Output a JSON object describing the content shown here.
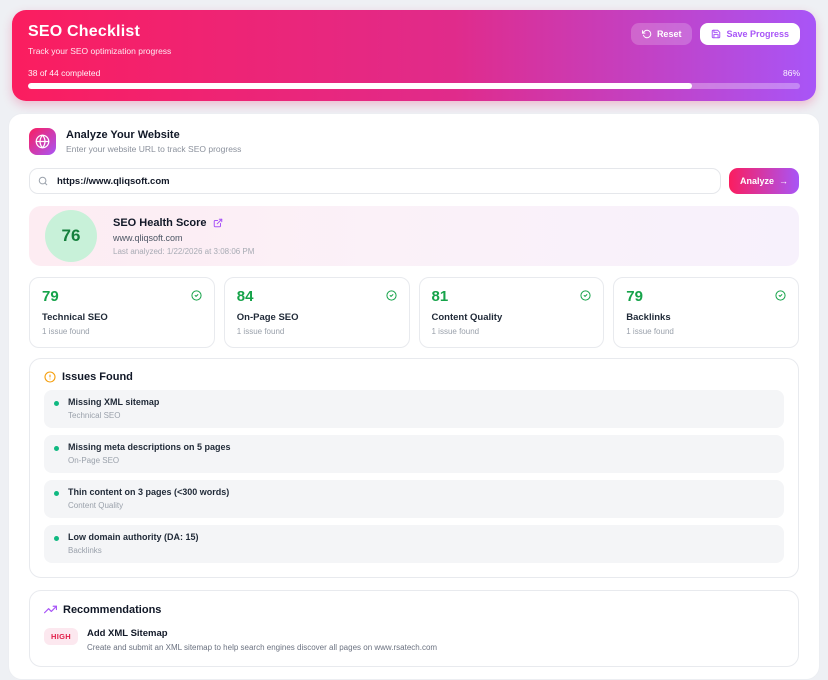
{
  "header": {
    "title": "SEO Checklist",
    "subtitle": "Track your SEO optimization progress",
    "reset_label": "Reset",
    "save_label": "Save Progress",
    "progress_text": "38 of 44 completed",
    "progress_percent": 86,
    "progress_percent_label": "86%"
  },
  "analyze": {
    "title": "Analyze Your Website",
    "subtitle": "Enter your website URL to track SEO progress",
    "url_value": "https://www.qliqsoft.com",
    "analyze_label": "Analyze",
    "analyze_arrow": "→"
  },
  "health": {
    "score": "76",
    "title": "SEO Health Score",
    "url": "www.qliqsoft.com",
    "last_analyzed": "Last analyzed: 1/22/2026 at 3:08:06 PM"
  },
  "scores": [
    {
      "value": "79",
      "label": "Technical SEO",
      "sub": "1 issue found"
    },
    {
      "value": "84",
      "label": "On-Page SEO",
      "sub": "1 issue found"
    },
    {
      "value": "81",
      "label": "Content Quality",
      "sub": "1 issue found"
    },
    {
      "value": "79",
      "label": "Backlinks",
      "sub": "1 issue found"
    }
  ],
  "issues": {
    "title": "Issues Found",
    "items": [
      {
        "title": "Missing XML sitemap",
        "category": "Technical SEO"
      },
      {
        "title": "Missing meta descriptions on 5 pages",
        "category": "On-Page SEO"
      },
      {
        "title": "Thin content on 3 pages (<300 words)",
        "category": "Content Quality"
      },
      {
        "title": "Low domain authority (DA: 15)",
        "category": "Backlinks"
      }
    ]
  },
  "recommendations": {
    "title": "Recommendations",
    "items": [
      {
        "priority": "HIGH",
        "title": "Add XML Sitemap",
        "description": "Create and submit an XML sitemap to help search engines discover all pages on www.rsatech.com"
      }
    ]
  },
  "colors": {
    "pink": "#fb1d5f",
    "purple": "#a855f7",
    "green": "#16a34a",
    "green-dark": "#15803d",
    "green-bg": "#c8f1d9",
    "orange": "#f59e0b",
    "red": "#e11d48",
    "red-bg": "#fce8ef",
    "page-bg": "#eef0f4"
  }
}
